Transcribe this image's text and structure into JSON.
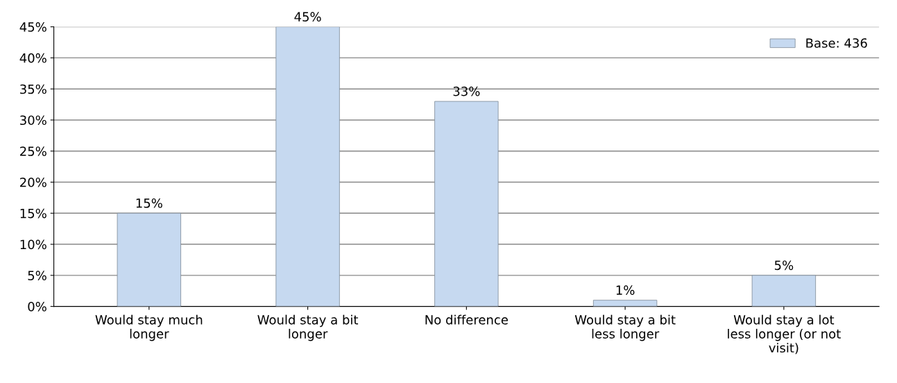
{
  "chart_data": {
    "type": "bar",
    "categories": [
      "Would stay much longer",
      "Would stay a bit longer",
      "No difference",
      "Would stay a bit less longer",
      "Would stay a lot less longer (or not visit)"
    ],
    "series": [
      {
        "name": "Base: 436",
        "color": "#c6d9f0",
        "values": [
          15,
          45,
          33,
          1,
          5
        ],
        "value_labels": [
          "15%",
          "45%",
          "33%",
          "1%",
          "5%"
        ]
      }
    ],
    "ylim": [
      0,
      45
    ],
    "yticks": [
      {
        "value": 0,
        "label": "0%"
      },
      {
        "value": 5,
        "label": "5%"
      },
      {
        "value": 10,
        "label": "10%"
      },
      {
        "value": 15,
        "label": "15%"
      },
      {
        "value": 20,
        "label": "20%"
      },
      {
        "value": 25,
        "label": "25%"
      },
      {
        "value": 30,
        "label": "30%"
      },
      {
        "value": 35,
        "label": "35%"
      },
      {
        "value": 40,
        "label": "40%"
      },
      {
        "value": 45,
        "label": "45%"
      }
    ],
    "grid": "y",
    "legend": "top right"
  }
}
